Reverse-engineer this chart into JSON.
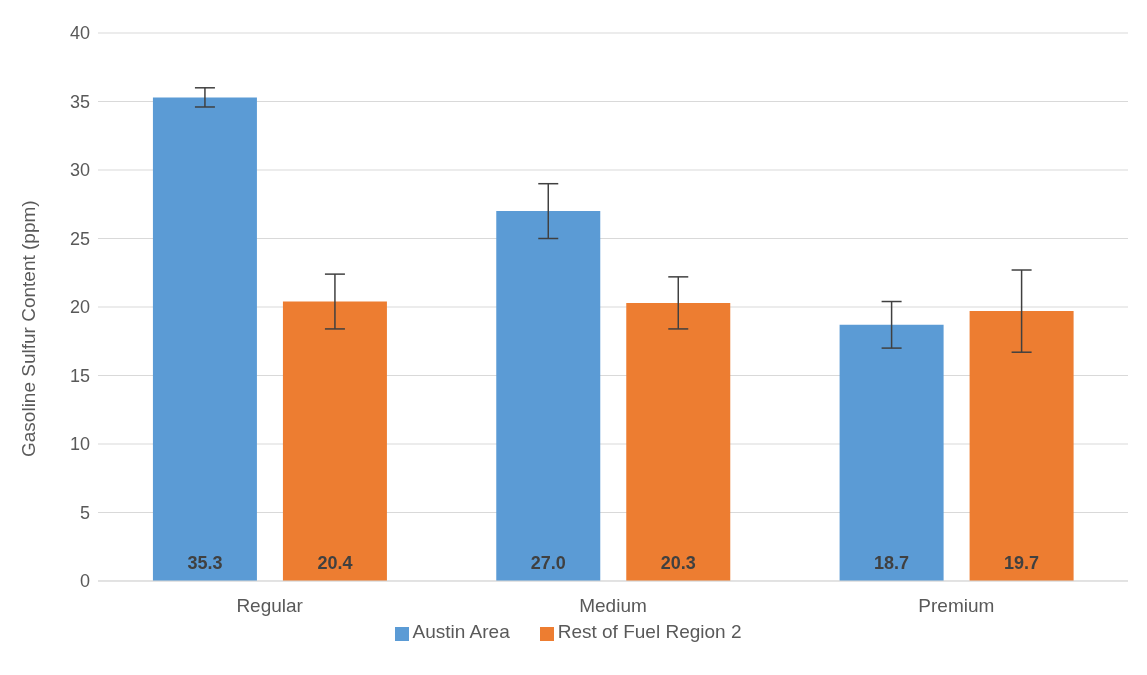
{
  "chart_data": {
    "type": "bar",
    "ylabel": "Gasoline Sulfur Content (ppm)",
    "categories": [
      "Regular",
      "Medium",
      "Premium"
    ],
    "series": [
      {
        "name": "Austin Area",
        "color": "#5b9bd5",
        "values": [
          35.3,
          27.0,
          18.7
        ],
        "errors": [
          0.7,
          2.0,
          1.7
        ],
        "value_labels": [
          "35.3",
          "27.0",
          "18.7"
        ]
      },
      {
        "name": "Rest of Fuel Region 2",
        "color": "#ed7d31",
        "values": [
          20.4,
          20.3,
          19.7
        ],
        "errors": [
          2.0,
          1.9,
          3.0
        ],
        "value_labels": [
          "20.4",
          "20.3",
          "19.7"
        ]
      }
    ],
    "ylim": [
      0,
      40
    ],
    "yticks": [
      0,
      5,
      10,
      15,
      20,
      25,
      30,
      35,
      40
    ],
    "grid": "y",
    "legend": "bottom"
  }
}
